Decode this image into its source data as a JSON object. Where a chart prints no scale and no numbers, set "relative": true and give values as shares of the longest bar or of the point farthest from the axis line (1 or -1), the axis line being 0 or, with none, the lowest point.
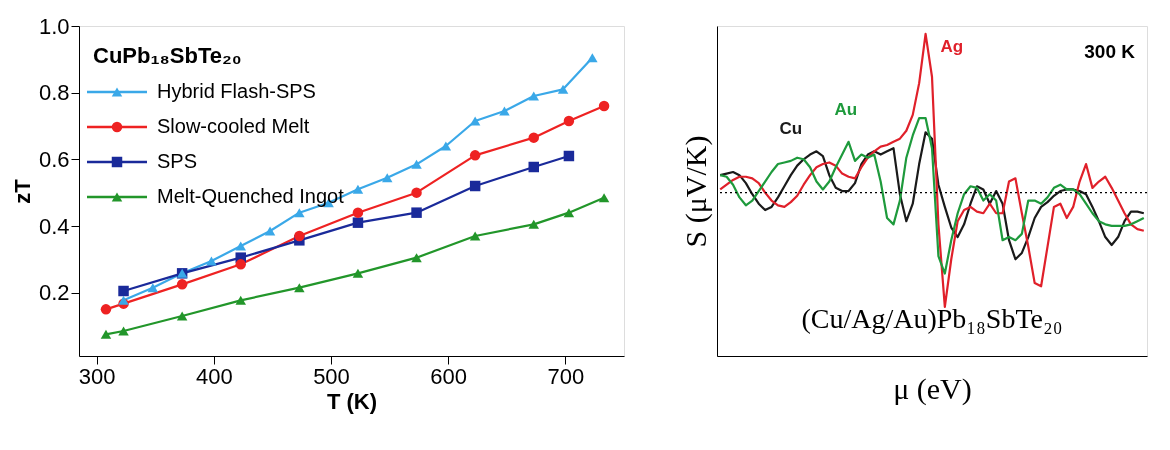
{
  "chart_data": [
    {
      "type": "line",
      "xlabel": "T (K)",
      "ylabel": "zT",
      "legend_title": "CuPb₁₈SbTe₂₀",
      "legend": "top left",
      "grid": false,
      "xlim": [
        285,
        750
      ],
      "xticks": [
        300,
        400,
        500,
        600,
        700
      ],
      "ylim": [
        0.01,
        1.0
      ],
      "yticks": [
        0.2,
        0.4,
        0.6,
        0.8,
        {
          "value": 1.0,
          "label": "1.0"
        }
      ],
      "series": [
        {
          "name": "Hybrid Flash-SPS",
          "color": "#3aa8e8",
          "marker": "triangle",
          "x": [
            323,
            348,
            373,
            398,
            423,
            448,
            473,
            498,
            523,
            548,
            573,
            598,
            623,
            648,
            673,
            698,
            723
          ],
          "values": [
            0.177,
            0.215,
            0.258,
            0.295,
            0.34,
            0.385,
            0.44,
            0.47,
            0.51,
            0.545,
            0.585,
            0.64,
            0.715,
            0.745,
            0.79,
            0.81,
            0.905
          ]
        },
        {
          "name": "Slow-cooled Melt",
          "color": "#ee2222",
          "marker": "circle",
          "x": [
            308,
            323,
            373,
            423,
            473,
            523,
            573,
            623,
            673,
            703,
            733
          ],
          "values": [
            0.15,
            0.167,
            0.225,
            0.285,
            0.37,
            0.44,
            0.5,
            0.612,
            0.665,
            0.715,
            0.76
          ]
        },
        {
          "name": "SPS",
          "color": "#1a2a9a",
          "marker": "square",
          "x": [
            323,
            373,
            423,
            473,
            523,
            573,
            623,
            673,
            703
          ],
          "values": [
            0.205,
            0.258,
            0.305,
            0.357,
            0.41,
            0.44,
            0.52,
            0.577,
            0.61
          ]
        },
        {
          "name": "Melt-Quenched Ingot",
          "color": "#22962a",
          "marker": "triangle",
          "x": [
            308,
            323,
            373,
            423,
            473,
            523,
            573,
            623,
            673,
            703,
            733
          ],
          "values": [
            0.075,
            0.085,
            0.13,
            0.177,
            0.215,
            0.258,
            0.305,
            0.37,
            0.405,
            0.44,
            0.485
          ]
        }
      ]
    },
    {
      "type": "line",
      "relative": true,
      "xlabel": "μ (eV)",
      "ylabel": "S (μV/K)",
      "grid": false,
      "legend": false,
      "line_style": "solid",
      "annotations": [
        "300 K",
        "(Cu/Ag/Au)Pb₁₈SbTe₂₀"
      ],
      "ref_lines": [
        {
          "axis": "y",
          "value": 0,
          "label": null,
          "line_style": "dotted",
          "color": "#000000"
        }
      ],
      "categories": [
        null,
        null,
        null,
        null,
        null,
        null,
        null,
        null,
        null,
        null,
        null,
        null,
        null,
        null,
        null,
        null,
        null,
        null,
        null,
        null,
        null,
        null,
        null,
        null,
        null,
        null,
        null,
        null,
        null,
        null,
        null,
        null,
        null,
        null,
        null,
        null,
        null,
        null,
        null,
        null,
        null,
        null,
        null,
        null,
        null,
        null,
        null,
        null,
        null,
        null,
        null,
        null,
        null,
        null,
        null,
        null,
        null,
        null,
        null,
        null,
        null,
        null,
        null,
        null,
        null,
        null,
        null
      ],
      "series": [
        {
          "name": "Cu",
          "color": "#1a1a1a",
          "values": [
            0.11,
            0.12,
            0.13,
            0.11,
            0.06,
            -0.01,
            -0.07,
            -0.11,
            -0.09,
            -0.03,
            0.04,
            0.11,
            0.17,
            0.21,
            0.24,
            0.26,
            0.23,
            0.11,
            0.03,
            0.01,
            0.01,
            0.06,
            0.18,
            0.24,
            0.26,
            0.24,
            0.26,
            0.28,
            -0.01,
            -0.18,
            -0.07,
            0.18,
            0.38,
            0.34,
            0.05,
            -0.09,
            -0.22,
            -0.28,
            -0.2,
            -0.07,
            0.04,
            0.02,
            -0.07,
            0.01,
            -0.07,
            -0.3,
            -0.42,
            -0.38,
            -0.28,
            -0.16,
            -0.09,
            -0.06,
            -0.02,
            0.01,
            0.02,
            0.02,
            0.01,
            -0.01,
            -0.09,
            -0.18,
            -0.28,
            -0.33,
            -0.28,
            -0.18,
            -0.12,
            -0.12,
            -0.13
          ]
        },
        {
          "name": "Ag",
          "color": "#e0202a",
          "values": [
            0.02,
            0.05,
            0.08,
            0.1,
            0.1,
            0.09,
            0.06,
            0,
            -0.05,
            -0.08,
            -0.09,
            -0.06,
            -0.02,
            0.05,
            0.11,
            0.16,
            0.18,
            0.19,
            0.17,
            0.12,
            0.1,
            0.09,
            0.16,
            0.22,
            0.26,
            0.29,
            0.3,
            0.32,
            0.34,
            0.39,
            0.49,
            0.69,
            1,
            0.73,
            -0.2,
            -0.72,
            -0.42,
            -0.18,
            -0.11,
            -0.09,
            -0.12,
            -0.13,
            -0.07,
            -0.13,
            -0.13,
            0.07,
            0.09,
            -0.13,
            -0.34,
            -0.57,
            -0.59,
            -0.34,
            -0.09,
            -0.07,
            -0.16,
            -0.09,
            0.07,
            0.18,
            0.03,
            0.07,
            0.1,
            0.03,
            -0.05,
            -0.13,
            -0.2,
            -0.23,
            -0.24
          ]
        },
        {
          "name": "Au",
          "color": "#1e9a3c",
          "values": [
            0.11,
            0.1,
            0.05,
            -0.03,
            -0.08,
            -0.05,
            0.01,
            0.07,
            0.13,
            0.18,
            0.19,
            0.2,
            0.22,
            0.21,
            0.16,
            0.07,
            0.02,
            0.07,
            0.16,
            0.24,
            0.32,
            0.2,
            0.24,
            0.22,
            0.24,
            0.07,
            -0.16,
            -0.2,
            -0.05,
            0.22,
            0.36,
            0.47,
            0.47,
            0.28,
            -0.4,
            -0.51,
            -0.3,
            -0.13,
            -0.01,
            0.04,
            0.03,
            -0.05,
            -0.01,
            -0.05,
            -0.3,
            -0.28,
            -0.3,
            -0.26,
            -0.05,
            -0.05,
            -0.07,
            -0.03,
            0.03,
            0.05,
            0.02,
            0.02,
            -0.01,
            -0.07,
            -0.13,
            -0.18,
            -0.2,
            -0.21,
            -0.21,
            -0.21,
            -0.2,
            -0.18,
            -0.16
          ]
        }
      ]
    }
  ]
}
